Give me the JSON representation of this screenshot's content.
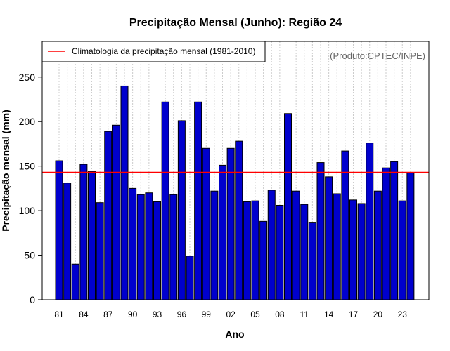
{
  "chart_data": {
    "type": "bar",
    "title": "Precipitação Mensal (Junho): Região 24",
    "xlabel": "Ano",
    "ylabel": "Precipitação mensal (mm)",
    "ylim": [
      0,
      290
    ],
    "yticks": [
      0,
      50,
      100,
      150,
      200,
      250
    ],
    "credit": "(Produto:CPTEC/INPE)",
    "legend": {
      "label": "Climatologia da precipitação mensal (1981-2010)",
      "position": "top-left"
    },
    "climatology": 143,
    "categories": [
      "1981",
      "1982",
      "1983",
      "1984",
      "1985",
      "1986",
      "1987",
      "1988",
      "1989",
      "1990",
      "1991",
      "1992",
      "1993",
      "1994",
      "1995",
      "1996",
      "1997",
      "1998",
      "1999",
      "2000",
      "2001",
      "2002",
      "2003",
      "2004",
      "2005",
      "2006",
      "2007",
      "2008",
      "2009",
      "2010",
      "2011",
      "2012",
      "2013",
      "2014",
      "2015",
      "2016",
      "2017",
      "2018",
      "2019",
      "2020",
      "2021",
      "2022",
      "2023",
      "2024"
    ],
    "tick_labels": [
      "81",
      "84",
      "87",
      "90",
      "93",
      "96",
      "99",
      "02",
      "05",
      "08",
      "11",
      "14",
      "17",
      "20",
      "23"
    ],
    "values": [
      156,
      131,
      40,
      152,
      144,
      109,
      189,
      196,
      240,
      125,
      118,
      120,
      110,
      222,
      118,
      201,
      49,
      222,
      170,
      122,
      151,
      170,
      178,
      110,
      111,
      88,
      123,
      106,
      209,
      122,
      107,
      87,
      154,
      138,
      119,
      167,
      112,
      108,
      176,
      122,
      148,
      155,
      111,
      143
    ],
    "colors": {
      "bar": "#0000cd",
      "bar_edge": "#000000",
      "climatology": "#ff0000",
      "grid": "#cccccc"
    },
    "grid": true
  }
}
